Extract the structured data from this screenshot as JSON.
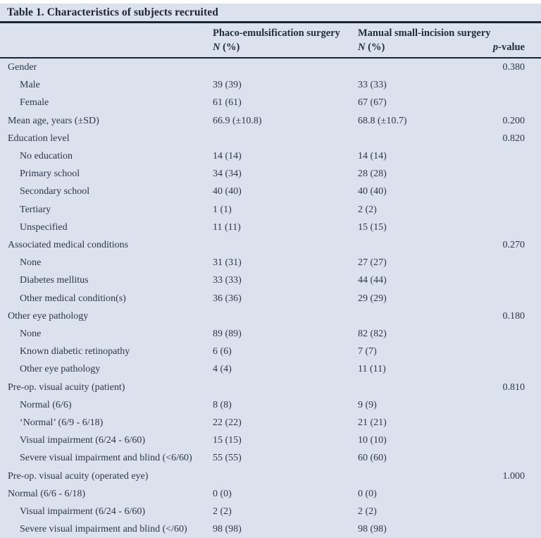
{
  "table": {
    "title": "Table 1. Characteristics of subjects recruited",
    "columns": {
      "row_label": "",
      "phaco": {
        "title": "Phaco-emulsification surgery",
        "sub_italic": "N",
        "sub_rest": " (%)"
      },
      "msics": {
        "title": "Manual small-incision surgery",
        "sub_italic": "N",
        "sub_rest": " (%)"
      },
      "p": {
        "italic": "p",
        "rest": "-value"
      }
    },
    "rows": [
      {
        "label": "Gender",
        "indent": 0,
        "phaco": "",
        "msics": "",
        "p": "0.380"
      },
      {
        "label": "Male",
        "indent": 1,
        "phaco": "39 (39)",
        "msics": "33 (33)",
        "p": ""
      },
      {
        "label": "Female",
        "indent": 1,
        "phaco": "61 (61)",
        "msics": "67 (67)",
        "p": ""
      },
      {
        "label": "Mean age, years (±SD)",
        "indent": 0,
        "phaco": "66.9 (±10.8)",
        "msics": "68.8 (±10.7)",
        "p": "0.200"
      },
      {
        "label": "Education level",
        "indent": 0,
        "phaco": "",
        "msics": "",
        "p": "0.820"
      },
      {
        "label": "No education",
        "indent": 1,
        "phaco": "14 (14)",
        "msics": "14 (14)",
        "p": ""
      },
      {
        "label": "Primary school",
        "indent": 1,
        "phaco": "34 (34)",
        "msics": "28 (28)",
        "p": ""
      },
      {
        "label": "Secondary school",
        "indent": 1,
        "phaco": "40 (40)",
        "msics": "40 (40)",
        "p": ""
      },
      {
        "label": "Tertiary",
        "indent": 1,
        "phaco": "1 (1)",
        "msics": "2 (2)",
        "p": ""
      },
      {
        "label": "Unspecified",
        "indent": 1,
        "phaco": "11 (11)",
        "msics": "15 (15)",
        "p": ""
      },
      {
        "label": "Associated medical conditions",
        "indent": 0,
        "phaco": "",
        "msics": "",
        "p": "0.270"
      },
      {
        "label": "None",
        "indent": 1,
        "phaco": "31 (31)",
        "msics": "27 (27)",
        "p": ""
      },
      {
        "label": "Diabetes mellitus",
        "indent": 1,
        "phaco": "33 (33)",
        "msics": "44 (44)",
        "p": ""
      },
      {
        "label": "Other medical condition(s)",
        "indent": 1,
        "phaco": "36 (36)",
        "msics": "29 (29)",
        "p": ""
      },
      {
        "label": "Other eye pathology",
        "indent": 0,
        "phaco": "",
        "msics": "",
        "p": "0.180"
      },
      {
        "label": "None",
        "indent": 1,
        "phaco": "89 (89)",
        "msics": "82 (82)",
        "p": ""
      },
      {
        "label": "Known diabetic retinopathy",
        "indent": 1,
        "phaco": "6 (6)",
        "msics": "7 (7)",
        "p": ""
      },
      {
        "label": "Other eye pathology",
        "indent": 1,
        "phaco": "4 (4)",
        "msics": "11 (11)",
        "p": ""
      },
      {
        "label": "Pre-op. visual acuity (patient)",
        "indent": 0,
        "phaco": "",
        "msics": "",
        "p": "0.810"
      },
      {
        "label": "Normal (6/6)",
        "indent": 1,
        "phaco": "8 (8)",
        "msics": "9 (9)",
        "p": ""
      },
      {
        "label": "‘Normal’ (6/9 - 6/18)",
        "indent": 1,
        "phaco": "22 (22)",
        "msics": "21 (21)",
        "p": ""
      },
      {
        "label": "Visual impairment (6/24 - 6/60)",
        "indent": 1,
        "phaco": "15 (15)",
        "msics": "10 (10)",
        "p": ""
      },
      {
        "label": "Severe visual impairment and blind (<6/60)",
        "indent": 1,
        "phaco": "55 (55)",
        "msics": "60 (60)",
        "p": ""
      },
      {
        "label": "Pre-op. visual acuity (operated eye)",
        "indent": 0,
        "phaco": "",
        "msics": "",
        "p": "1.000"
      },
      {
        "label": "Normal (6/6 - 6/18)",
        "indent": 0,
        "phaco": "0 (0)",
        "msics": "0 (0)",
        "p": ""
      },
      {
        "label": "Visual impairment (6/24 - 6/60)",
        "indent": 1,
        "phaco": "2 (2)",
        "msics": "2 (2)",
        "p": ""
      },
      {
        "label": "Severe visual impairment and blind (</60)",
        "indent": 1,
        "phaco": "98 (98)",
        "msics": "98 (98)",
        "p": ""
      }
    ]
  }
}
